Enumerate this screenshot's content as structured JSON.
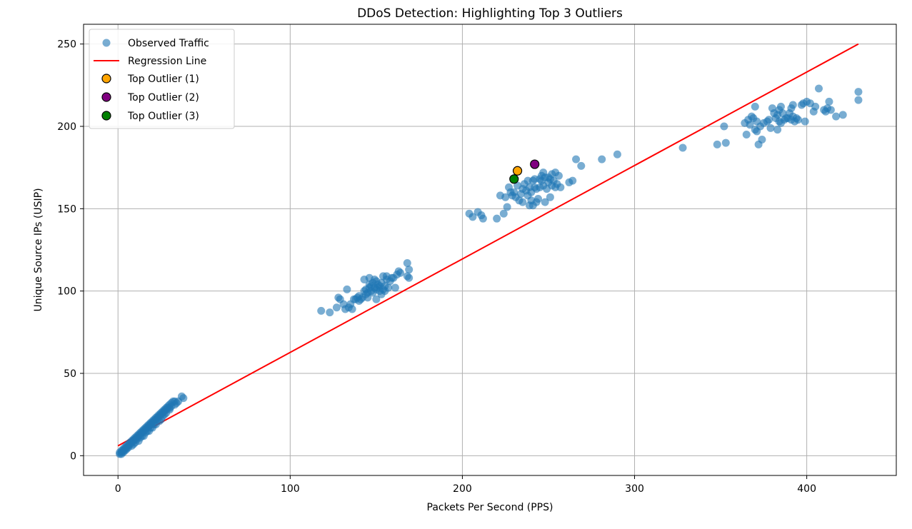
{
  "chart_data": {
    "type": "scatter",
    "title": "DDoS Detection: Highlighting Top 3 Outliers",
    "xlabel": "Packets Per Second (PPS)",
    "ylabel": "Unique Source IPs (USIP)",
    "xlim": [
      -20,
      452
    ],
    "ylim": [
      -12,
      262
    ],
    "xticks": [
      0,
      100,
      200,
      300,
      400
    ],
    "yticks": [
      0,
      50,
      100,
      150,
      200,
      250
    ],
    "grid": true,
    "legend_position": "top-left",
    "colors": {
      "observed": "#1f77b4",
      "regression": "#ff0000",
      "outlier1": "#ffa500",
      "outlier2": "#800080",
      "outlier3": "#008000"
    },
    "series": [
      {
        "name": "Observed Traffic",
        "kind": "scatter",
        "points": [
          [
            1,
            1
          ],
          [
            1,
            2
          ],
          [
            2,
            2
          ],
          [
            2,
            3
          ],
          [
            3,
            3
          ],
          [
            3,
            4
          ],
          [
            4,
            4
          ],
          [
            4,
            5
          ],
          [
            5,
            5
          ],
          [
            5,
            6
          ],
          [
            6,
            6
          ],
          [
            6,
            7
          ],
          [
            7,
            7
          ],
          [
            7,
            8
          ],
          [
            8,
            8
          ],
          [
            8,
            9
          ],
          [
            9,
            9
          ],
          [
            9,
            10
          ],
          [
            10,
            10
          ],
          [
            10,
            11
          ],
          [
            11,
            11
          ],
          [
            11,
            12
          ],
          [
            12,
            12
          ],
          [
            12,
            13
          ],
          [
            13,
            13
          ],
          [
            13,
            14
          ],
          [
            14,
            14
          ],
          [
            14,
            15
          ],
          [
            15,
            15
          ],
          [
            15,
            16
          ],
          [
            16,
            16
          ],
          [
            16,
            17
          ],
          [
            17,
            17
          ],
          [
            17,
            18
          ],
          [
            18,
            18
          ],
          [
            18,
            19
          ],
          [
            19,
            19
          ],
          [
            19,
            20
          ],
          [
            20,
            20
          ],
          [
            20,
            21
          ],
          [
            21,
            21
          ],
          [
            21,
            22
          ],
          [
            22,
            22
          ],
          [
            22,
            23
          ],
          [
            23,
            23
          ],
          [
            23,
            24
          ],
          [
            24,
            24
          ],
          [
            24,
            25
          ],
          [
            25,
            25
          ],
          [
            25,
            26
          ],
          [
            26,
            26
          ],
          [
            26,
            27
          ],
          [
            27,
            27
          ],
          [
            27,
            28
          ],
          [
            28,
            28
          ],
          [
            28,
            29
          ],
          [
            29,
            29
          ],
          [
            29,
            30
          ],
          [
            30,
            31
          ],
          [
            31,
            32
          ],
          [
            32,
            33
          ],
          [
            33,
            33
          ],
          [
            30,
            29
          ],
          [
            25,
            22
          ],
          [
            20,
            17
          ],
          [
            15,
            12
          ],
          [
            10,
            8
          ],
          [
            12,
            9
          ],
          [
            18,
            15
          ],
          [
            22,
            19
          ],
          [
            27,
            25
          ],
          [
            8,
            6
          ],
          [
            5,
            4
          ],
          [
            3,
            2
          ],
          [
            37,
            36
          ],
          [
            38,
            35
          ],
          [
            34,
            32
          ],
          [
            35,
            33
          ],
          [
            31,
            30
          ],
          [
            2,
            1
          ],
          [
            4,
            3
          ],
          [
            6,
            5
          ],
          [
            9,
            7
          ],
          [
            11,
            10
          ],
          [
            14,
            12
          ],
          [
            16,
            14
          ],
          [
            19,
            17
          ],
          [
            21,
            19
          ],
          [
            23,
            22
          ],
          [
            26,
            24
          ],
          [
            28,
            26
          ],
          [
            30,
            28
          ],
          [
            33,
            31
          ],
          [
            24,
            21
          ],
          [
            17,
            15
          ],
          [
            13,
            11
          ],
          [
            118,
            88
          ],
          [
            123,
            87
          ],
          [
            127,
            90
          ],
          [
            128,
            96
          ],
          [
            129,
            95
          ],
          [
            131,
            92
          ],
          [
            132,
            89
          ],
          [
            133,
            101
          ],
          [
            134,
            90
          ],
          [
            135,
            92
          ],
          [
            136,
            89
          ],
          [
            138,
            95
          ],
          [
            139,
            96
          ],
          [
            140,
            94
          ],
          [
            141,
            95
          ],
          [
            142,
            96
          ],
          [
            143,
            100
          ],
          [
            143,
            107
          ],
          [
            144,
            101
          ],
          [
            144,
            98
          ],
          [
            145,
            99
          ],
          [
            145,
            96
          ],
          [
            146,
            104
          ],
          [
            146,
            108
          ],
          [
            147,
            100
          ],
          [
            147,
            103
          ],
          [
            148,
            105
          ],
          [
            148,
            99
          ],
          [
            149,
            107
          ],
          [
            149,
            102
          ],
          [
            150,
            101
          ],
          [
            150,
            95
          ],
          [
            151,
            104
          ],
          [
            151,
            102
          ],
          [
            152,
            100
          ],
          [
            152,
            103
          ],
          [
            153,
            98
          ],
          [
            153,
            105
          ],
          [
            154,
            109
          ],
          [
            154,
            101
          ],
          [
            155,
            100
          ],
          [
            155,
            103
          ],
          [
            156,
            109
          ],
          [
            157,
            102
          ],
          [
            158,
            106
          ],
          [
            159,
            108
          ],
          [
            160,
            108
          ],
          [
            161,
            102
          ],
          [
            162,
            110
          ],
          [
            163,
            112
          ],
          [
            164,
            111
          ],
          [
            168,
            117
          ],
          [
            168,
            109
          ],
          [
            169,
            113
          ],
          [
            169,
            108
          ],
          [
            156,
            107
          ],
          [
            150,
            106
          ],
          [
            146,
            102
          ],
          [
            140,
            97
          ],
          [
            137,
            95
          ],
          [
            204,
            147
          ],
          [
            206,
            145
          ],
          [
            209,
            148
          ],
          [
            211,
            146
          ],
          [
            212,
            144
          ],
          [
            220,
            144
          ],
          [
            222,
            158
          ],
          [
            224,
            147
          ],
          [
            225,
            157
          ],
          [
            226,
            151
          ],
          [
            227,
            163
          ],
          [
            228,
            160
          ],
          [
            229,
            158
          ],
          [
            230,
            160
          ],
          [
            231,
            157
          ],
          [
            232,
            164
          ],
          [
            233,
            155
          ],
          [
            234,
            159
          ],
          [
            235,
            154
          ],
          [
            235,
            162
          ],
          [
            236,
            165
          ],
          [
            237,
            161
          ],
          [
            238,
            167
          ],
          [
            238,
            158
          ],
          [
            239,
            152
          ],
          [
            239,
            163
          ],
          [
            240,
            155
          ],
          [
            240,
            160
          ],
          [
            241,
            152
          ],
          [
            241,
            167
          ],
          [
            242,
            163
          ],
          [
            242,
            168
          ],
          [
            243,
            154
          ],
          [
            243,
            162
          ],
          [
            244,
            156
          ],
          [
            245,
            168
          ],
          [
            245,
            163
          ],
          [
            246,
            167
          ],
          [
            246,
            170
          ],
          [
            247,
            164
          ],
          [
            247,
            172
          ],
          [
            248,
            169
          ],
          [
            248,
            154
          ],
          [
            249,
            162
          ],
          [
            250,
            166
          ],
          [
            250,
            169
          ],
          [
            251,
            157
          ],
          [
            251,
            168
          ],
          [
            252,
            164
          ],
          [
            252,
            171
          ],
          [
            253,
            167
          ],
          [
            254,
            163
          ],
          [
            254,
            172
          ],
          [
            255,
            165
          ],
          [
            256,
            170
          ],
          [
            257,
            163
          ],
          [
            262,
            166
          ],
          [
            264,
            167
          ],
          [
            266,
            180
          ],
          [
            269,
            176
          ],
          [
            281,
            180
          ],
          [
            290,
            183
          ],
          [
            328,
            187
          ],
          [
            348,
            189
          ],
          [
            352,
            200
          ],
          [
            353,
            190
          ],
          [
            364,
            202
          ],
          [
            365,
            195
          ],
          [
            366,
            204
          ],
          [
            367,
            201
          ],
          [
            368,
            206
          ],
          [
            369,
            205
          ],
          [
            370,
            198
          ],
          [
            370,
            212
          ],
          [
            371,
            203
          ],
          [
            371,
            197
          ],
          [
            372,
            189
          ],
          [
            373,
            200
          ],
          [
            374,
            192
          ],
          [
            375,
            202
          ],
          [
            377,
            203
          ],
          [
            378,
            204
          ],
          [
            379,
            199
          ],
          [
            380,
            211
          ],
          [
            381,
            208
          ],
          [
            382,
            205
          ],
          [
            383,
            198
          ],
          [
            383,
            207
          ],
          [
            384,
            203
          ],
          [
            384,
            210
          ],
          [
            385,
            212
          ],
          [
            385,
            202
          ],
          [
            386,
            208
          ],
          [
            387,
            204
          ],
          [
            388,
            205
          ],
          [
            389,
            205
          ],
          [
            390,
            208
          ],
          [
            391,
            204
          ],
          [
            391,
            211
          ],
          [
            392,
            213
          ],
          [
            392,
            206
          ],
          [
            393,
            203
          ],
          [
            394,
            205
          ],
          [
            395,
            204
          ],
          [
            397,
            213
          ],
          [
            398,
            214
          ],
          [
            399,
            203
          ],
          [
            400,
            215
          ],
          [
            402,
            214
          ],
          [
            404,
            209
          ],
          [
            405,
            212
          ],
          [
            407,
            223
          ],
          [
            410,
            210
          ],
          [
            411,
            209
          ],
          [
            412,
            211
          ],
          [
            413,
            215
          ],
          [
            414,
            210
          ],
          [
            417,
            206
          ],
          [
            421,
            207
          ],
          [
            430,
            221
          ],
          [
            430,
            216
          ]
        ]
      },
      {
        "name": "Regression Line",
        "kind": "line",
        "points": [
          [
            0,
            6
          ],
          [
            430,
            250
          ]
        ]
      },
      {
        "name": "Top Outlier (1)",
        "kind": "outlier",
        "points": [
          [
            232,
            173
          ]
        ]
      },
      {
        "name": "Top Outlier (2)",
        "kind": "outlier",
        "points": [
          [
            242,
            177
          ]
        ]
      },
      {
        "name": "Top Outlier (3)",
        "kind": "outlier",
        "points": [
          [
            230,
            168
          ]
        ]
      }
    ]
  }
}
